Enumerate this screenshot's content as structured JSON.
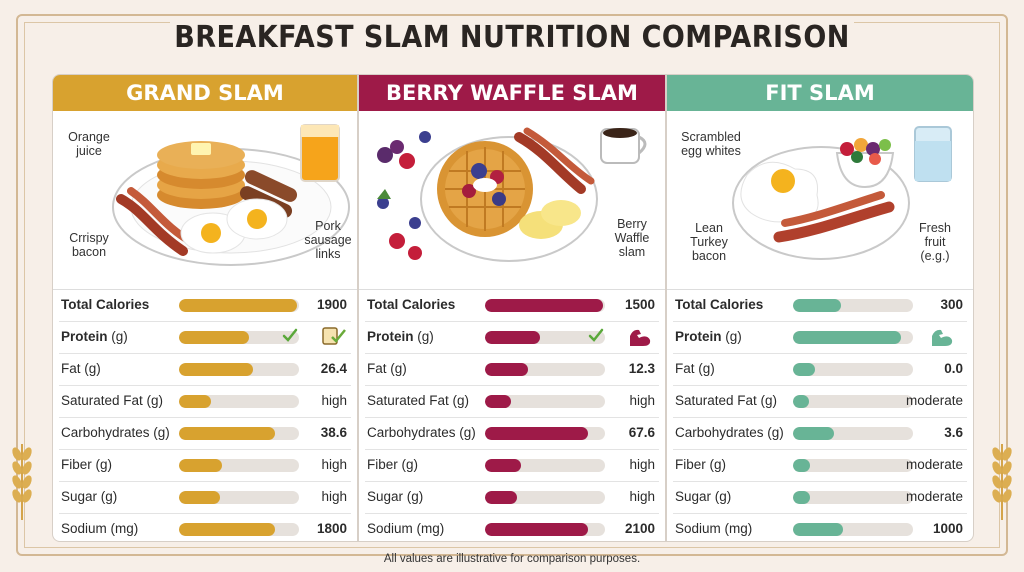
{
  "title": "BREAKFAST SLAM NUTRITION COMPARISON",
  "footer": "All values are illustrative for comparison purposes.",
  "colors": {
    "grand": "#d8a22f",
    "berry": "#9e1a48",
    "fit": "#68b496",
    "background": "#f7efe8"
  },
  "row_labels": [
    {
      "name": "Total Calories",
      "unit": ""
    },
    {
      "name": "Protein",
      "unit": " (g)"
    },
    {
      "name": "Fat (g)",
      "unit": ""
    },
    {
      "name": "Saturated Fat (g)",
      "unit": ""
    },
    {
      "name": "Carbohydrates (g)",
      "unit": ""
    },
    {
      "name": "Fiber (g)",
      "unit": ""
    },
    {
      "name": "Sugar (g)",
      "unit": ""
    },
    {
      "name": "Sodium (mg)",
      "unit": ""
    }
  ],
  "panels": [
    {
      "id": "grand",
      "header": "GRAND SLAM",
      "captions": [
        "Orange\njuice",
        "Crrispy\nbacon",
        "Pork\nsausage\nlinks"
      ],
      "values": [
        "1900",
        "",
        "26.4",
        "high",
        "38.6",
        "high",
        "high",
        "1800"
      ],
      "levels": [
        0.98,
        0.58,
        0.62,
        0.27,
        0.8,
        0.36,
        0.34,
        0.8
      ],
      "protein_icon": "cup-check-icon"
    },
    {
      "id": "berry",
      "header": "BERRY WAFFLE SLAM",
      "captions": [
        "Berry\nWaffle\nslam"
      ],
      "values": [
        "1500",
        "",
        "12.3",
        "high",
        "67.6",
        "high",
        "high",
        "2100"
      ],
      "levels": [
        0.98,
        0.46,
        0.36,
        0.22,
        0.86,
        0.3,
        0.27,
        0.86
      ],
      "protein_icon": "flexed-arm-icon"
    },
    {
      "id": "fit",
      "header": "FIT SLAM",
      "captions": [
        "Scrambled\negg whites",
        "Lean\nTurkey\nbacon",
        "Fresh\nfruit\n(e.g.)"
      ],
      "values": [
        "300",
        "",
        "0.0",
        "moderate",
        "3.6",
        "moderate",
        "moderate",
        "1000"
      ],
      "levels": [
        0.4,
        0.9,
        0.18,
        0.13,
        0.34,
        0.14,
        0.14,
        0.42
      ],
      "protein_icon": "flexed-arm-icon"
    }
  ]
}
